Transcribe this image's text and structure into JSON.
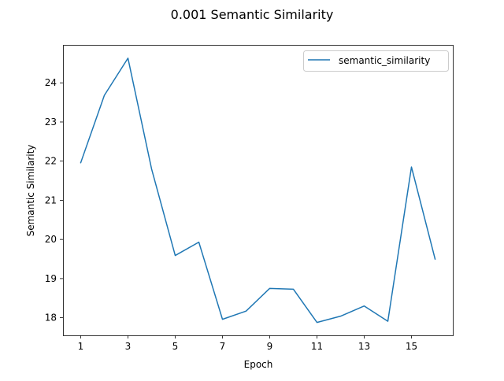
{
  "chart_data": {
    "type": "line",
    "title": "0.001 Semantic Similarity",
    "xlabel": "Epoch",
    "ylabel": "Semantic Similarity",
    "x": [
      1,
      2,
      3,
      4,
      5,
      6,
      7,
      8,
      9,
      10,
      11,
      12,
      13,
      14,
      15,
      16
    ],
    "series": [
      {
        "name": "semantic_similarity",
        "color": "#1f77b4",
        "values": [
          21.96,
          23.68,
          24.63,
          21.8,
          19.59,
          19.93,
          17.96,
          18.17,
          18.75,
          18.73,
          17.88,
          18.04,
          18.3,
          17.91,
          21.85,
          19.5
        ]
      }
    ],
    "xticks": [
      "1",
      "3",
      "5",
      "7",
      "9",
      "11",
      "13",
      "15"
    ],
    "yticks": [
      "18",
      "19",
      "20",
      "21",
      "22",
      "23",
      "24"
    ],
    "xlim": [
      0.25,
      16.75
    ],
    "ylim": [
      17.55,
      24.97
    ],
    "grid": false,
    "legend_position": "upper right"
  }
}
